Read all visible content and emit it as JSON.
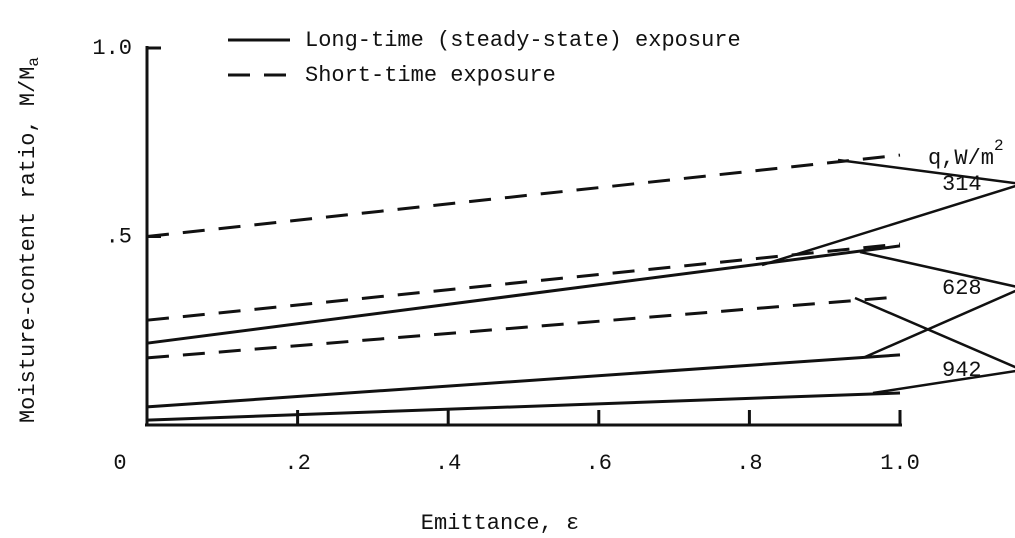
{
  "chart_data": {
    "type": "line",
    "xlabel": "Emittance, ε",
    "ylabel": "Moisture-content ratio, M/M",
    "ylabel_sub": "a",
    "q_label": "q,W/m",
    "q_label_sup": "2",
    "x": [
      0,
      1
    ],
    "xlim": [
      0,
      1
    ],
    "ylim": [
      0,
      1
    ],
    "xticks": [
      0,
      {
        "value": 0.2,
        "label": ".2"
      },
      {
        "value": 0.4,
        "label": ".4"
      },
      {
        "value": 0.6,
        "label": ".6"
      },
      {
        "value": 0.8,
        "label": ".8"
      },
      {
        "value": 1,
        "label": "1.0"
      }
    ],
    "yticks": [
      {
        "value": 0.5,
        "label": ".5"
      },
      {
        "value": 1,
        "label": "1.0"
      }
    ],
    "legend": [
      {
        "label": "Long-time (steady-state) exposure",
        "dash": "solid"
      },
      {
        "label": "Short-time exposure",
        "dash": "dashed"
      }
    ],
    "legend_position": "upper left",
    "color": "#111111",
    "series": [
      {
        "name": "314",
        "long": [
          0.217,
          0.475
        ],
        "short": [
          0.5,
          0.716
        ]
      },
      {
        "name": "628",
        "long": [
          0.048,
          0.186
        ],
        "short": [
          0.278,
          0.48
        ]
      },
      {
        "name": "942",
        "long": [
          0.013,
          0.085
        ],
        "short": [
          0.178,
          0.34
        ]
      }
    ]
  }
}
